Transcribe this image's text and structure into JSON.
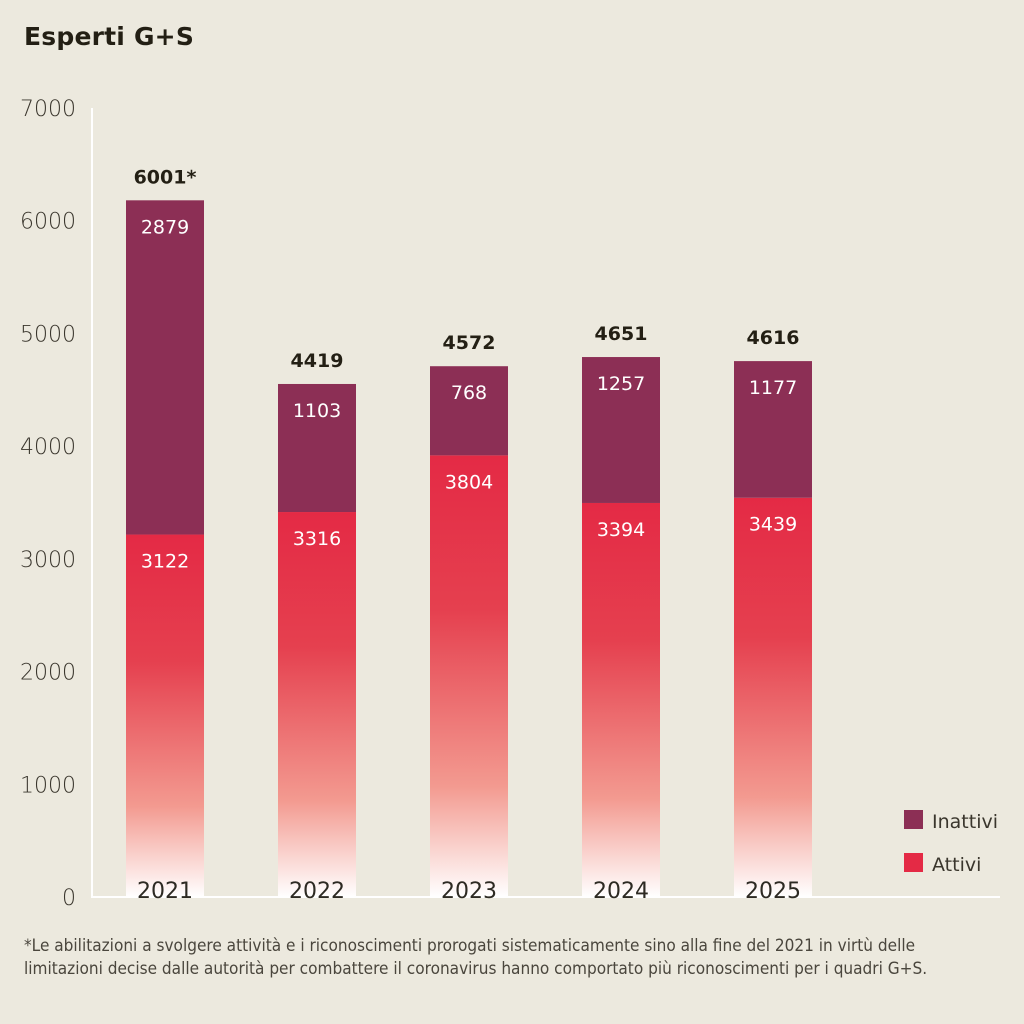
{
  "title": "Esperti G+S",
  "footnote": "*Le abilitazioni a svolgere attività e i riconoscimenti prorogati sistematicamente sino alla fine del 2021 in virtù delle limitazioni decise dalle autorità per combattere il coronavirus hanno comportato più riconoscimenti per i quadri G+S.",
  "colors": {
    "background": "#ECE9DE",
    "inattivi": "#8C2F55",
    "attivi": "#E42A45",
    "attivi_fade": "#FFFFFF",
    "axis": "#FFFFFF"
  },
  "chart_data": {
    "type": "bar",
    "stacked": true,
    "title": "Esperti G+S",
    "xlabel": "",
    "ylabel": "",
    "ylim": [
      0,
      7000
    ],
    "yticks": [
      0,
      1000,
      2000,
      3000,
      4000,
      5000,
      6000,
      7000
    ],
    "grid": false,
    "legend_position": "bottom-right",
    "categories": [
      "2021",
      "2022",
      "2023",
      "2024",
      "2025"
    ],
    "series": [
      {
        "name": "Attivi",
        "values": [
          3122,
          3316,
          3804,
          3394,
          3439
        ]
      },
      {
        "name": "Inattivi",
        "values": [
          2879,
          1103,
          768,
          1257,
          1177
        ]
      }
    ],
    "totals": [
      "6001*",
      "4419",
      "4572",
      "4651",
      "4616"
    ],
    "legend": [
      "Inattivi",
      "Attivi"
    ]
  }
}
